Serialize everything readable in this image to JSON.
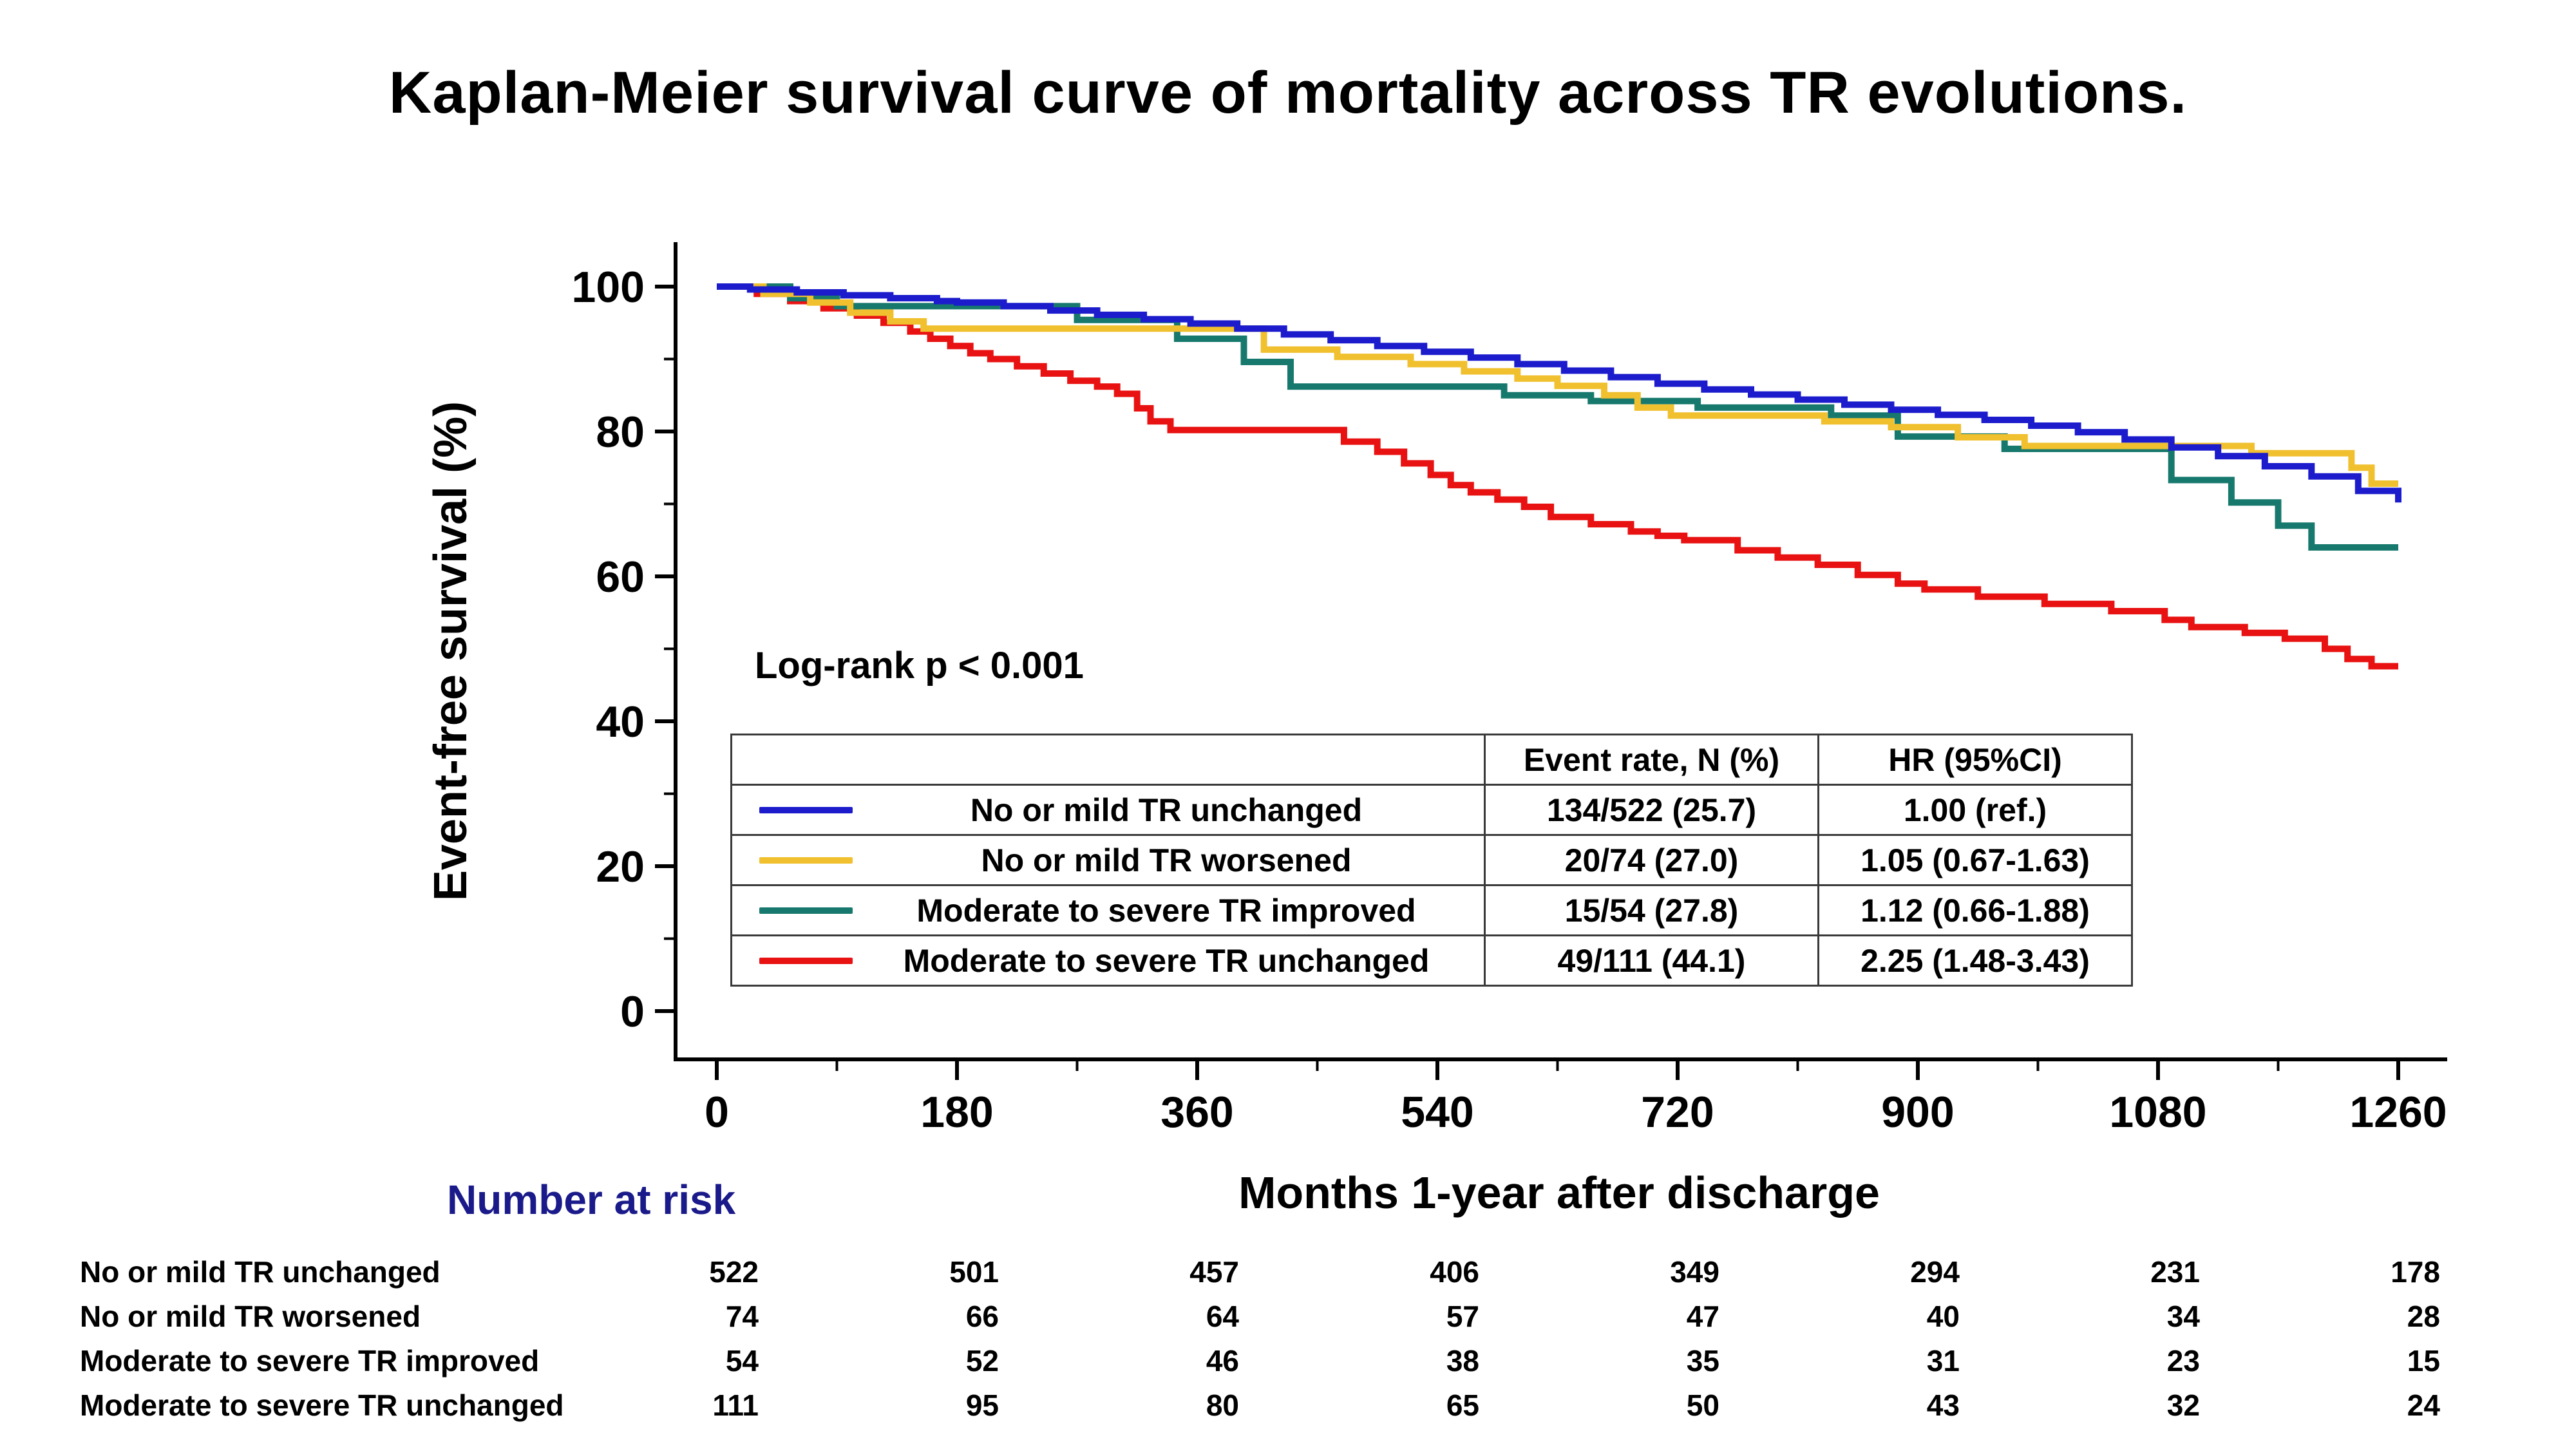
{
  "title": "Kaplan-Meier survival curve of mortality across TR evolutions.",
  "y_axis_label": "Event-free survival (%)",
  "x_axis_label": "Months 1-year after discharge",
  "log_rank": "Log-rank p < 0.001",
  "number_at_risk_label": "Number at risk",
  "colors": {
    "blue": "#1c1ccd",
    "yellow": "#f0c02f",
    "teal": "#17796d",
    "red": "#e81212",
    "navy_heading": "#1a1a8a",
    "axis": "#000000"
  },
  "legend": {
    "headers": [
      "Event rate, N (%)",
      "HR (95%CI)"
    ],
    "rows": [
      {
        "label": "No or mild TR unchanged",
        "event_rate": "134/522 (25.7)",
        "hr": "1.00 (ref.)"
      },
      {
        "label": "No or mild TR worsened",
        "event_rate": "20/74 (27.0)",
        "hr": "1.05 (0.67-1.63)"
      },
      {
        "label": "Moderate to severe TR improved",
        "event_rate": "15/54 (27.8)",
        "hr": "1.12 (0.66-1.88)"
      },
      {
        "label": "Moderate to severe TR unchanged",
        "event_rate": "49/111 (44.1)",
        "hr": "2.25 (1.48-3.43)"
      }
    ]
  },
  "chart_data": {
    "type": "line",
    "subtype": "kaplan-meier-step",
    "title": "Kaplan-Meier survival curve of mortality across TR evolutions.",
    "xlabel": "Months 1-year after discharge",
    "ylabel": "Event-free survival (%)",
    "xlim": [
      0,
      1260
    ],
    "ylim": [
      0,
      100
    ],
    "x_ticks": [
      0,
      180,
      360,
      540,
      720,
      900,
      1080,
      1260
    ],
    "y_ticks": [
      0,
      20,
      40,
      60,
      80,
      100
    ],
    "grid": false,
    "legend_position": "inside-lower-left-table",
    "annotation": "Log-rank p < 0.001",
    "series": [
      {
        "name": "No or mild TR unchanged",
        "color": "#1c1ccd",
        "points": [
          [
            0,
            100
          ],
          [
            25,
            99.6
          ],
          [
            60,
            99.2
          ],
          [
            95,
            98.8
          ],
          [
            130,
            98.4
          ],
          [
            165,
            98.0
          ],
          [
            180,
            97.8
          ],
          [
            215,
            97.3
          ],
          [
            250,
            96.7
          ],
          [
            285,
            96.1
          ],
          [
            320,
            95.5
          ],
          [
            355,
            94.9
          ],
          [
            390,
            94.2
          ],
          [
            425,
            93.4
          ],
          [
            460,
            92.6
          ],
          [
            495,
            91.8
          ],
          [
            530,
            91.0
          ],
          [
            565,
            90.2
          ],
          [
            600,
            89.3
          ],
          [
            635,
            88.4
          ],
          [
            670,
            87.5
          ],
          [
            705,
            86.6
          ],
          [
            740,
            85.8
          ],
          [
            775,
            85.1
          ],
          [
            810,
            84.4
          ],
          [
            845,
            83.7
          ],
          [
            880,
            83.0
          ],
          [
            915,
            82.3
          ],
          [
            950,
            81.6
          ],
          [
            985,
            80.8
          ],
          [
            1020,
            79.9
          ],
          [
            1055,
            78.9
          ],
          [
            1090,
            77.8
          ],
          [
            1125,
            76.6
          ],
          [
            1160,
            75.2
          ],
          [
            1195,
            73.8
          ],
          [
            1230,
            71.8
          ],
          [
            1260,
            70.2
          ]
        ]
      },
      {
        "name": "No or mild TR worsened",
        "color": "#f0c02f",
        "points": [
          [
            0,
            100
          ],
          [
            35,
            99.0
          ],
          [
            70,
            97.8
          ],
          [
            100,
            96.4
          ],
          [
            130,
            95.2
          ],
          [
            155,
            94.2
          ],
          [
            395,
            94.2
          ],
          [
            410,
            91.3
          ],
          [
            465,
            90.3
          ],
          [
            520,
            89.3
          ],
          [
            560,
            88.3
          ],
          [
            600,
            87.3
          ],
          [
            630,
            86.3
          ],
          [
            665,
            85.0
          ],
          [
            690,
            83.3
          ],
          [
            715,
            82.2
          ],
          [
            800,
            82.2
          ],
          [
            830,
            81.4
          ],
          [
            880,
            80.6
          ],
          [
            930,
            79.2
          ],
          [
            980,
            78.0
          ],
          [
            1140,
            78.0
          ],
          [
            1150,
            77.0
          ],
          [
            1225,
            75.0
          ],
          [
            1240,
            72.8
          ],
          [
            1260,
            72.8
          ]
        ]
      },
      {
        "name": "Moderate to severe TR improved",
        "color": "#17796d",
        "points": [
          [
            0,
            100
          ],
          [
            55,
            98.4
          ],
          [
            90,
            97.3
          ],
          [
            255,
            97.3
          ],
          [
            270,
            95.4
          ],
          [
            335,
            95.4
          ],
          [
            345,
            92.8
          ],
          [
            385,
            92.8
          ],
          [
            395,
            89.6
          ],
          [
            420,
            89.6
          ],
          [
            430,
            86.2
          ],
          [
            575,
            86.2
          ],
          [
            590,
            85.0
          ],
          [
            640,
            85.0
          ],
          [
            655,
            84.2
          ],
          [
            720,
            84.2
          ],
          [
            735,
            83.3
          ],
          [
            820,
            83.3
          ],
          [
            835,
            82.2
          ],
          [
            870,
            82.2
          ],
          [
            885,
            79.3
          ],
          [
            955,
            79.3
          ],
          [
            965,
            77.6
          ],
          [
            1080,
            77.6
          ],
          [
            1090,
            73.3
          ],
          [
            1125,
            73.3
          ],
          [
            1135,
            70.2
          ],
          [
            1160,
            70.2
          ],
          [
            1170,
            67.0
          ],
          [
            1185,
            67.0
          ],
          [
            1195,
            64.0
          ],
          [
            1260,
            64.0
          ]
        ]
      },
      {
        "name": "Moderate to severe TR unchanged",
        "color": "#e81212",
        "points": [
          [
            0,
            100
          ],
          [
            30,
            99.0
          ],
          [
            55,
            98.0
          ],
          [
            80,
            97.0
          ],
          [
            105,
            96.0
          ],
          [
            125,
            95.0
          ],
          [
            145,
            93.8
          ],
          [
            160,
            92.8
          ],
          [
            175,
            91.8
          ],
          [
            190,
            90.8
          ],
          [
            205,
            90.0
          ],
          [
            225,
            89.0
          ],
          [
            245,
            88.0
          ],
          [
            265,
            87.0
          ],
          [
            285,
            86.2
          ],
          [
            300,
            85.2
          ],
          [
            315,
            83.2
          ],
          [
            325,
            81.4
          ],
          [
            340,
            80.2
          ],
          [
            455,
            80.2
          ],
          [
            470,
            78.6
          ],
          [
            495,
            77.2
          ],
          [
            515,
            75.6
          ],
          [
            535,
            74.0
          ],
          [
            550,
            72.6
          ],
          [
            565,
            71.6
          ],
          [
            585,
            70.6
          ],
          [
            605,
            69.6
          ],
          [
            625,
            68.2
          ],
          [
            655,
            67.2
          ],
          [
            685,
            66.2
          ],
          [
            705,
            65.6
          ],
          [
            725,
            65.0
          ],
          [
            765,
            63.6
          ],
          [
            795,
            62.6
          ],
          [
            825,
            61.6
          ],
          [
            855,
            60.2
          ],
          [
            885,
            59.0
          ],
          [
            905,
            58.2
          ],
          [
            945,
            57.2
          ],
          [
            995,
            56.2
          ],
          [
            1045,
            55.2
          ],
          [
            1085,
            54.0
          ],
          [
            1105,
            53.0
          ],
          [
            1145,
            52.2
          ],
          [
            1175,
            51.4
          ],
          [
            1205,
            50.0
          ],
          [
            1222,
            48.6
          ],
          [
            1240,
            47.6
          ],
          [
            1260,
            47.6
          ]
        ]
      }
    ]
  },
  "number_at_risk": {
    "x": [
      0,
      180,
      360,
      540,
      720,
      900,
      1080,
      1260
    ],
    "rows": [
      {
        "label": "No or mild TR unchanged",
        "values": [
          522,
          501,
          457,
          406,
          349,
          294,
          231,
          178
        ]
      },
      {
        "label": "No or mild TR worsened",
        "values": [
          74,
          66,
          64,
          57,
          47,
          40,
          34,
          28
        ]
      },
      {
        "label": "Moderate to severe TR improved",
        "values": [
          54,
          52,
          46,
          38,
          35,
          31,
          23,
          15
        ]
      },
      {
        "label": "Moderate to severe TR unchanged",
        "values": [
          111,
          95,
          80,
          65,
          50,
          43,
          32,
          24
        ]
      }
    ]
  }
}
